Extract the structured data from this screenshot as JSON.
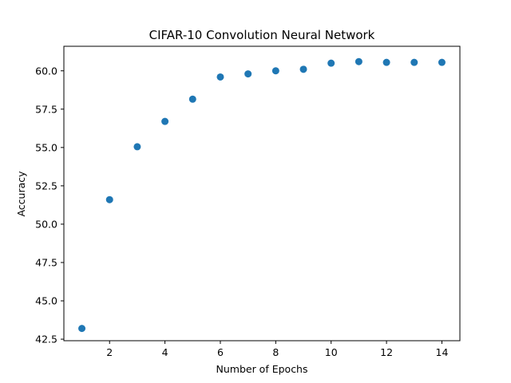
{
  "chart_data": {
    "type": "scatter",
    "title": "CIFAR-10 Convolution Neural Network",
    "xlabel": "Number of Epochs",
    "ylabel": "Accuracy",
    "xlim": [
      0.35,
      14.65
    ],
    "ylim": [
      42.4,
      61.6
    ],
    "xticks": [
      2,
      4,
      6,
      8,
      10,
      12,
      14
    ],
    "yticks": [
      42.5,
      45.0,
      47.5,
      50.0,
      52.5,
      55.0,
      57.5,
      60.0
    ],
    "grid": false,
    "marker_color": "#1f77b4",
    "x": [
      1,
      2,
      3,
      4,
      5,
      6,
      7,
      8,
      9,
      10,
      11,
      12,
      13,
      14
    ],
    "y": [
      43.2,
      51.6,
      55.05,
      56.7,
      58.15,
      59.6,
      59.8,
      60.0,
      60.1,
      60.5,
      60.6,
      60.55,
      60.55,
      60.55
    ]
  }
}
